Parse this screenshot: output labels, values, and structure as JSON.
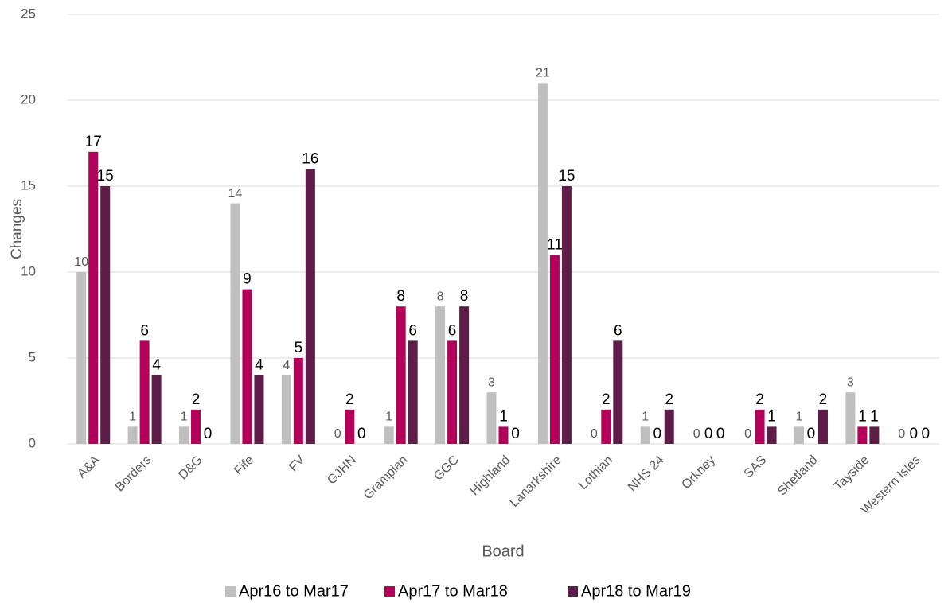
{
  "chart_data": {
    "type": "bar",
    "x_label": "Board",
    "y_label": "Changes",
    "categories": [
      "A&A",
      "Borders",
      "D&G",
      "Fife",
      "FV",
      "GJHN",
      "Grampian",
      "GGC",
      "Highland",
      "Lanarkshire",
      "Lothian",
      "NHS 24",
      "Orkney",
      "SAS",
      "Shetland",
      "Tayside",
      "Western Isles"
    ],
    "series": [
      {
        "name": "Apr16 to Mar17",
        "color": "#bfbfbf",
        "values": [
          10,
          1,
          1,
          14,
          4,
          0,
          1,
          8,
          3,
          21,
          0,
          1,
          0,
          0,
          1,
          3,
          0
        ]
      },
      {
        "name": "Apr17 to Mar18",
        "color": "#b4005a",
        "values": [
          17,
          6,
          2,
          9,
          5,
          2,
          8,
          6,
          1,
          11,
          2,
          0,
          0,
          2,
          0,
          1,
          0
        ]
      },
      {
        "name": "Apr18 to Mar19",
        "color": "#5e1c48",
        "values": [
          15,
          4,
          0,
          4,
          16,
          0,
          6,
          8,
          0,
          15,
          6,
          2,
          0,
          1,
          2,
          1,
          0
        ]
      }
    ],
    "ylim": [
      0,
      25
    ],
    "yticks": [
      0,
      5,
      10,
      15,
      20,
      25
    ],
    "grid": true,
    "legend": "bottom"
  }
}
